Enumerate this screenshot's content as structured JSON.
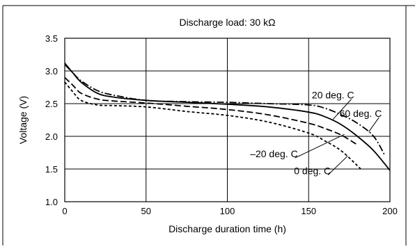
{
  "chart_data": {
    "type": "line",
    "title": "Discharge load: 30 kΩ",
    "xlabel": "Discharge duration time (h)",
    "ylabel": "Voltage (V)",
    "xlim": [
      0,
      200
    ],
    "ylim": [
      1.0,
      3.5
    ],
    "x_ticks": [
      0,
      50,
      100,
      150,
      200
    ],
    "y_ticks": [
      1.0,
      1.5,
      2.0,
      2.5,
      3.0,
      3.5
    ],
    "x_tick_labels": [
      "0",
      "50",
      "100",
      "150",
      "200"
    ],
    "y_tick_labels": [
      "1.0",
      "1.5",
      "2.0",
      "2.5",
      "3.0",
      "3.5"
    ],
    "grid": true,
    "series": [
      {
        "name": "60 deg. C",
        "style": "dash-dot",
        "points": [
          [
            0,
            3.1
          ],
          [
            5,
            2.97
          ],
          [
            10,
            2.85
          ],
          [
            20,
            2.7
          ],
          [
            30,
            2.63
          ],
          [
            50,
            2.55
          ],
          [
            75,
            2.53
          ],
          [
            100,
            2.52
          ],
          [
            125,
            2.5
          ],
          [
            150,
            2.48
          ],
          [
            160,
            2.43
          ],
          [
            170,
            2.33
          ],
          [
            180,
            2.2
          ],
          [
            190,
            2.0
          ],
          [
            197,
            1.7
          ]
        ]
      },
      {
        "name": "20 deg. C",
        "style": "solid",
        "points": [
          [
            0,
            3.12
          ],
          [
            5,
            2.97
          ],
          [
            10,
            2.83
          ],
          [
            20,
            2.66
          ],
          [
            30,
            2.6
          ],
          [
            50,
            2.55
          ],
          [
            75,
            2.52
          ],
          [
            100,
            2.49
          ],
          [
            125,
            2.45
          ],
          [
            150,
            2.37
          ],
          [
            160,
            2.3
          ],
          [
            170,
            2.18
          ],
          [
            180,
            2.0
          ],
          [
            190,
            1.78
          ],
          [
            200,
            1.48
          ]
        ]
      },
      {
        "name": "–20 deg. C",
        "style": "dashed",
        "points": [
          [
            0,
            2.9
          ],
          [
            5,
            2.78
          ],
          [
            10,
            2.66
          ],
          [
            20,
            2.57
          ],
          [
            30,
            2.54
          ],
          [
            50,
            2.51
          ],
          [
            75,
            2.46
          ],
          [
            100,
            2.41
          ],
          [
            125,
            2.33
          ],
          [
            150,
            2.2
          ],
          [
            160,
            2.12
          ],
          [
            170,
            2.02
          ],
          [
            180,
            1.87
          ]
        ]
      },
      {
        "name": "0 deg. C",
        "style": "dotted",
        "points": [
          [
            0,
            2.83
          ],
          [
            5,
            2.68
          ],
          [
            10,
            2.55
          ],
          [
            20,
            2.48
          ],
          [
            30,
            2.47
          ],
          [
            50,
            2.45
          ],
          [
            75,
            2.38
          ],
          [
            100,
            2.32
          ],
          [
            125,
            2.22
          ],
          [
            150,
            2.05
          ],
          [
            160,
            1.93
          ],
          [
            170,
            1.78
          ],
          [
            180,
            1.55
          ],
          [
            182,
            1.5
          ]
        ]
      }
    ],
    "annotations": [
      {
        "text": "20 deg. C",
        "x": 152,
        "y": 2.58,
        "anchor_series": "20 deg. C",
        "tip": [
          165,
          2.26
        ],
        "align": "start"
      },
      {
        "text": "60 deg. C",
        "x": 169,
        "y": 2.3,
        "anchor_series": "60 deg. C",
        "tip": [
          187,
          2.07
        ],
        "align": "start"
      },
      {
        "text": "–20 deg. C",
        "x": 114,
        "y": 1.68,
        "anchor_series": "–20 deg. C",
        "tip": [
          172,
          2.03
        ],
        "align": "start"
      },
      {
        "text": "0 deg. C",
        "x": 141,
        "y": 1.42,
        "anchor_series": "0 deg. C",
        "tip": [
          174,
          1.7
        ],
        "align": "start"
      }
    ]
  }
}
